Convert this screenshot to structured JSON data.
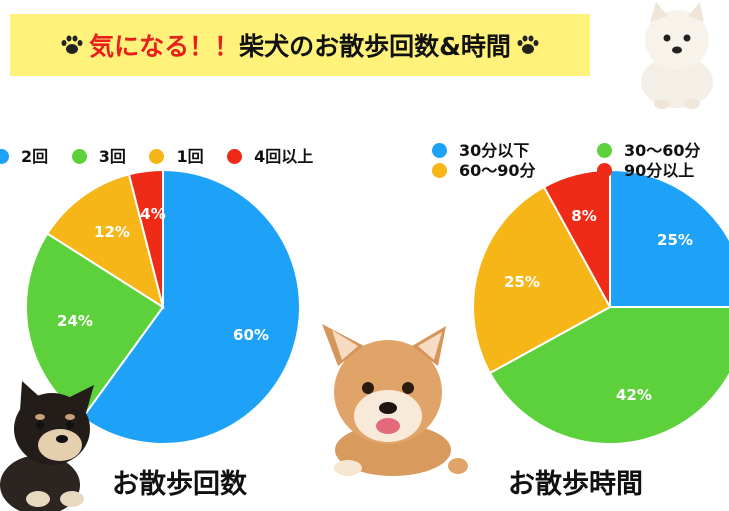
{
  "banner": {
    "title_red": "気になる！！",
    "title_black": "柴犬のお散歩回数&時間"
  },
  "colors": {
    "blue": "#1ea2f8",
    "green": "#5dd13c",
    "orange": "#f7b617",
    "red": "#ef2a17",
    "banner": "#fff27a"
  },
  "chart_data": [
    {
      "type": "pie",
      "title": "お散歩回数",
      "legend_position": "top",
      "categories": [
        "2回",
        "3回",
        "1回",
        "4回以上"
      ],
      "values": [
        60,
        24,
        12,
        4
      ],
      "labels": [
        "60%",
        "24%",
        "12%",
        "4%"
      ],
      "colors": [
        "#1ea2f8",
        "#5dd13c",
        "#f7b617",
        "#ef2a17"
      ]
    },
    {
      "type": "pie",
      "title": "お散歩時間",
      "legend_position": "top",
      "categories": [
        "30分以下",
        "30〜60分",
        "60〜90分",
        "90分以上"
      ],
      "values": [
        25,
        42,
        25,
        8
      ],
      "labels": [
        "25%",
        "42%",
        "25%",
        "8%"
      ],
      "colors": [
        "#1ea2f8",
        "#5dd13c",
        "#f7b617",
        "#ef2a17"
      ]
    }
  ]
}
